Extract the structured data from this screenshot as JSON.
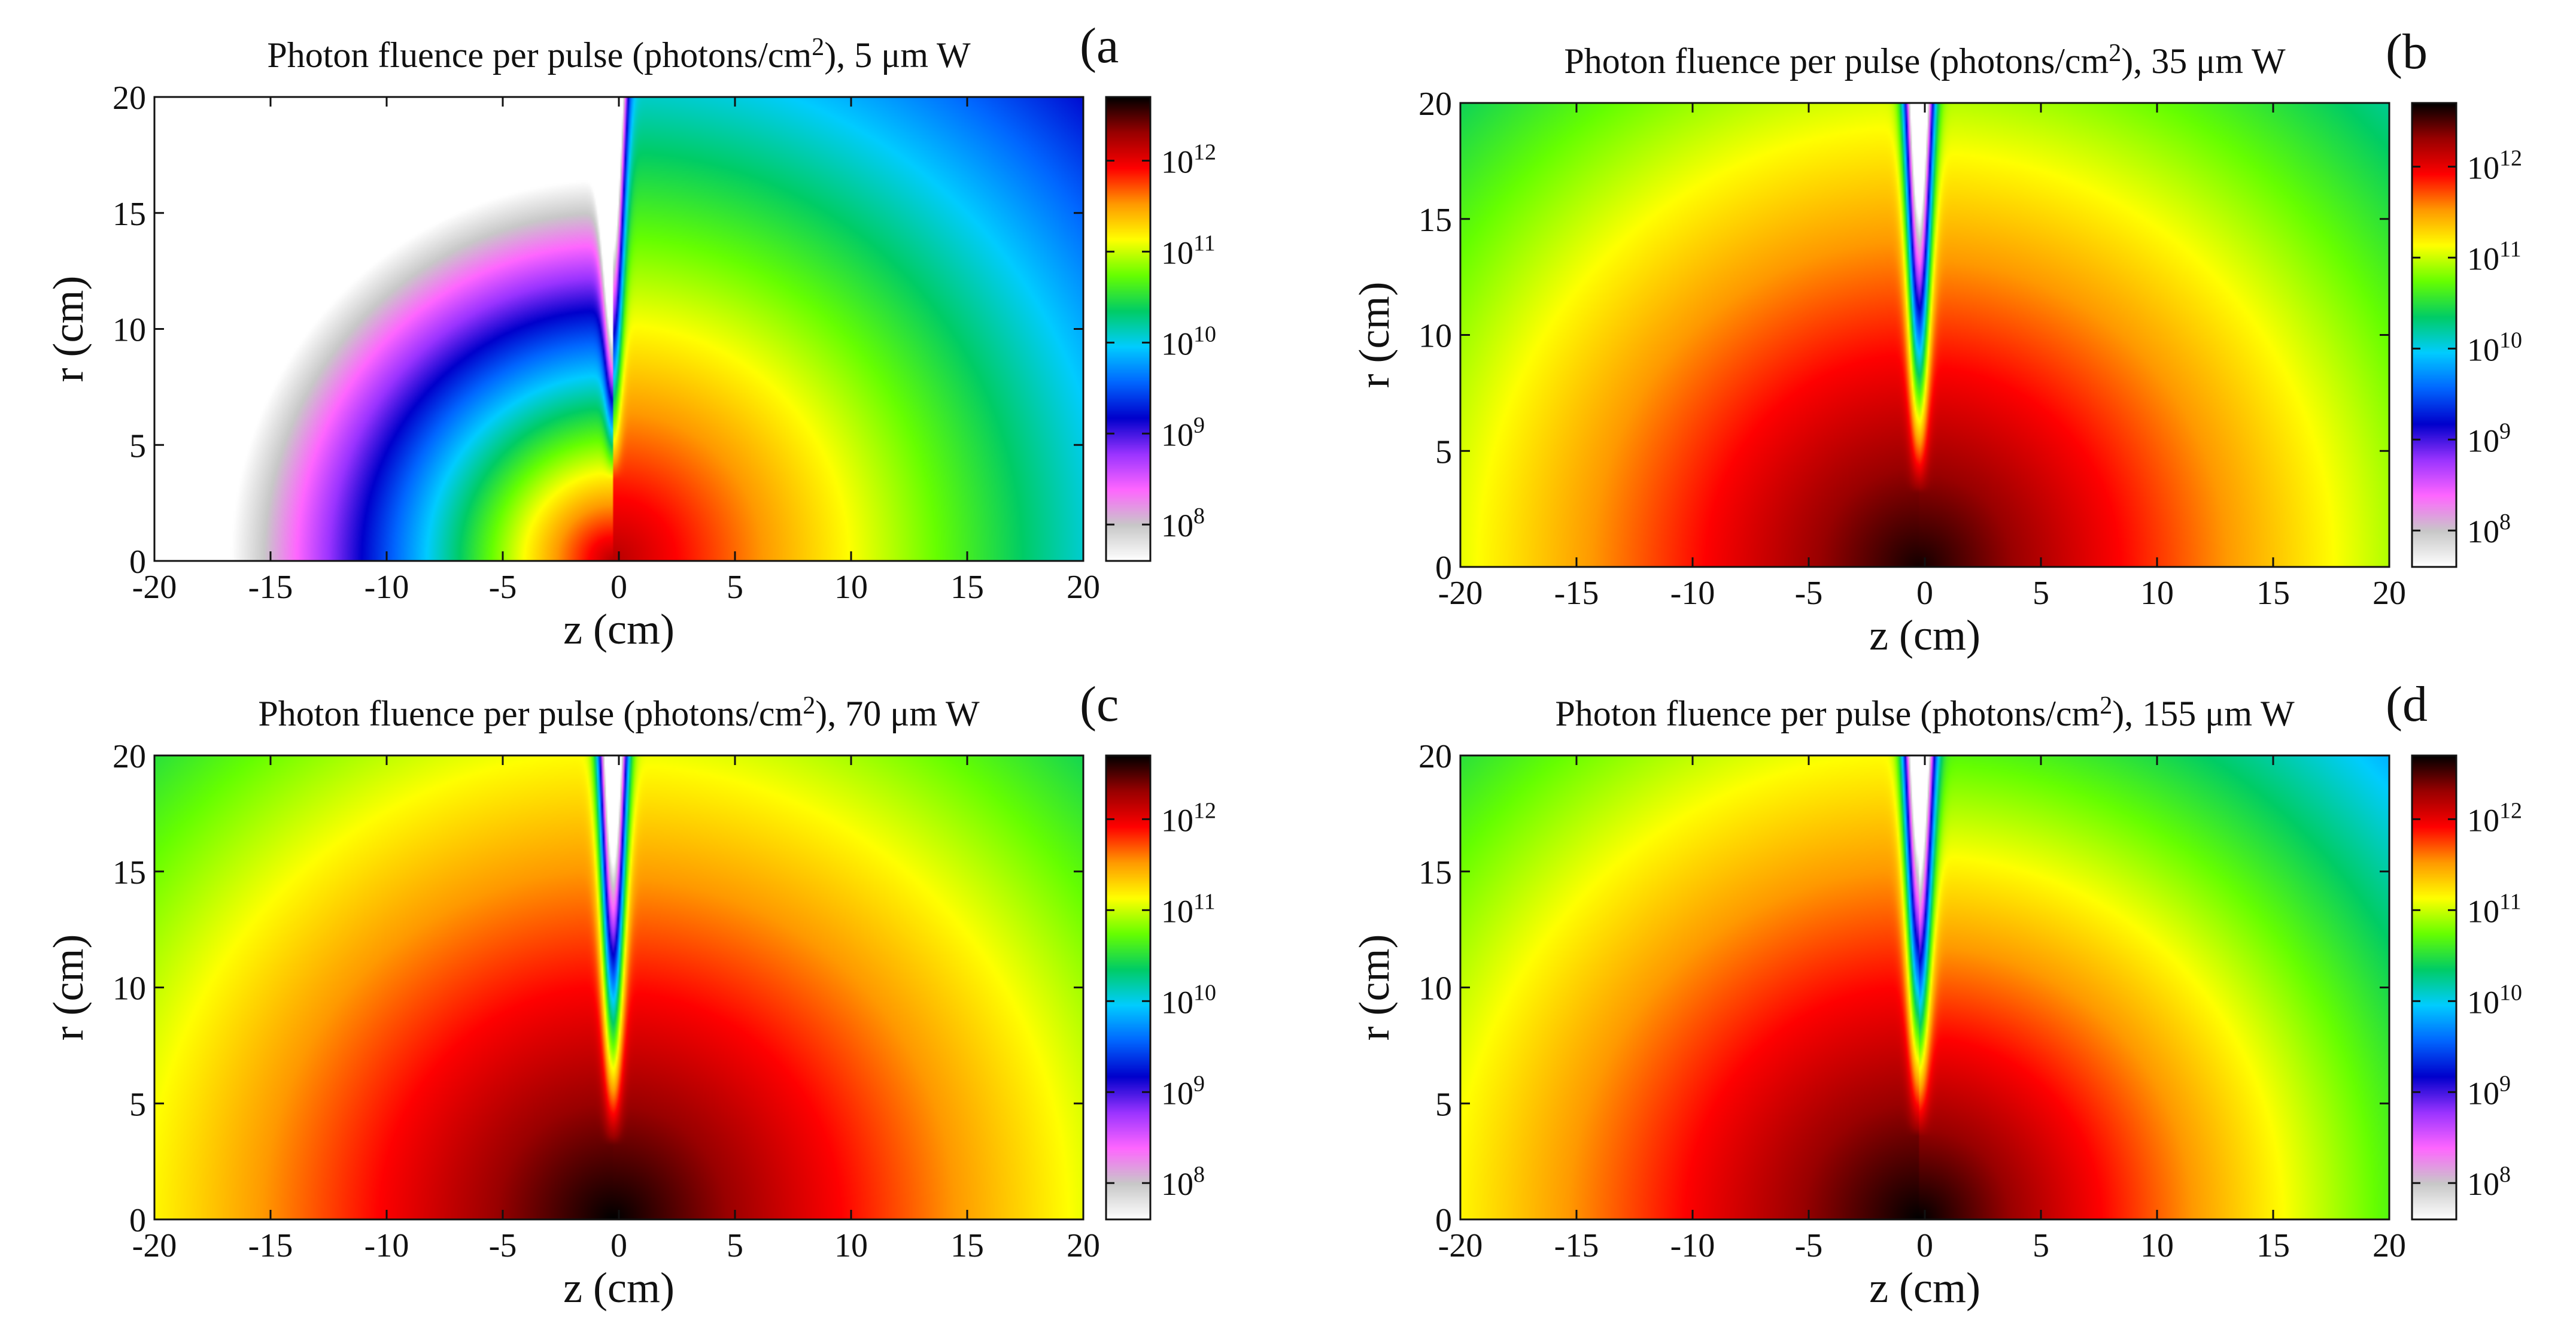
{
  "figure": {
    "colormap": [
      "#ffffff",
      "#c8c8c8",
      "#ff66ff",
      "#9933ff",
      "#0000cc",
      "#0066ff",
      "#00ccff",
      "#00cc66",
      "#66ff00",
      "#ffff00",
      "#ff9900",
      "#ff0000",
      "#990000",
      "#000000"
    ]
  },
  "chart_data": [
    {
      "type": "heatmap",
      "panel_label": "(a",
      "title_prefix": "Photon fluence per pulse (photons/cm",
      "title_sup": "2",
      "title_suffix": "), 5 μm W",
      "xlabel": "z (cm)",
      "ylabel": "r (cm)",
      "xlim": [
        -20,
        20
      ],
      "ylim": [
        0,
        20
      ],
      "xticks": [
        "-20",
        "-15",
        "-10",
        "-5",
        "0",
        "5",
        "10",
        "15",
        "20"
      ],
      "yticks": [
        "0",
        "5",
        "10",
        "15",
        "20"
      ],
      "colorbar": {
        "base": "10",
        "exponents": [
          "8",
          "9",
          "10",
          "11",
          "12"
        ],
        "log_range": [
          7.6,
          12.7
        ]
      },
      "model": {
        "peak_log": 12.2,
        "left_decay": 0.28,
        "right_decay": 0.105,
        "shadow_depth": 3.5,
        "shadow_width": 0.25
      }
    },
    {
      "type": "heatmap",
      "panel_label": "(b",
      "title_prefix": "Photon fluence per pulse (photons/cm",
      "title_sup": "2",
      "title_suffix": "), 35 μm W",
      "xlabel": "z (cm)",
      "ylabel": "r (cm)",
      "xlim": [
        -20,
        20
      ],
      "ylim": [
        0,
        20
      ],
      "xticks": [
        "-20",
        "-15",
        "-10",
        "-5",
        "0",
        "5",
        "10",
        "15",
        "20"
      ],
      "yticks": [
        "0",
        "5",
        "10",
        "15",
        "20"
      ],
      "colorbar": {
        "base": "10",
        "exponents": [
          "8",
          "9",
          "10",
          "11",
          "12"
        ],
        "log_range": [
          7.6,
          12.7
        ]
      },
      "model": {
        "peak_log": 12.65,
        "left_decay": 0.08,
        "right_decay": 0.085,
        "shadow_depth": 3.2,
        "shadow_width": 0.28
      }
    },
    {
      "type": "heatmap",
      "panel_label": "(c",
      "title_prefix": "Photon fluence per pulse (photons/cm",
      "title_sup": "2",
      "title_suffix": "), 70 μm W",
      "xlabel": "z (cm)",
      "ylabel": "r (cm)",
      "xlim": [
        -20,
        20
      ],
      "ylim": [
        0,
        20
      ],
      "xticks": [
        "-20",
        "-15",
        "-10",
        "-5",
        "0",
        "5",
        "10",
        "15",
        "20"
      ],
      "yticks": [
        "0",
        "5",
        "10",
        "15",
        "20"
      ],
      "colorbar": {
        "base": "10",
        "exponents": [
          "8",
          "9",
          "10",
          "11",
          "12"
        ],
        "log_range": [
          7.6,
          12.7
        ]
      },
      "model": {
        "peak_log": 12.7,
        "left_decay": 0.078,
        "right_decay": 0.08,
        "shadow_depth": 3.2,
        "shadow_width": 0.28
      }
    },
    {
      "type": "heatmap",
      "panel_label": "(d",
      "title_prefix": "Photon fluence per pulse (photons/cm",
      "title_sup": "2",
      "title_suffix": "), 155 μm W",
      "xlabel": "z (cm)",
      "ylabel": "r (cm)",
      "xlim": [
        -20,
        20
      ],
      "ylim": [
        0,
        20
      ],
      "xticks": [
        "-20",
        "-15",
        "-10",
        "-5",
        "0",
        "5",
        "10",
        "15",
        "20"
      ],
      "yticks": [
        "0",
        "5",
        "10",
        "15",
        "20"
      ],
      "colorbar": {
        "base": "10",
        "exponents": [
          "8",
          "9",
          "10",
          "11",
          "12"
        ],
        "log_range": [
          7.6,
          12.7
        ]
      },
      "model": {
        "peak_log": 12.7,
        "left_decay": 0.078,
        "right_decay": 0.1,
        "shadow_depth": 3.6,
        "shadow_width": 0.3
      }
    }
  ]
}
